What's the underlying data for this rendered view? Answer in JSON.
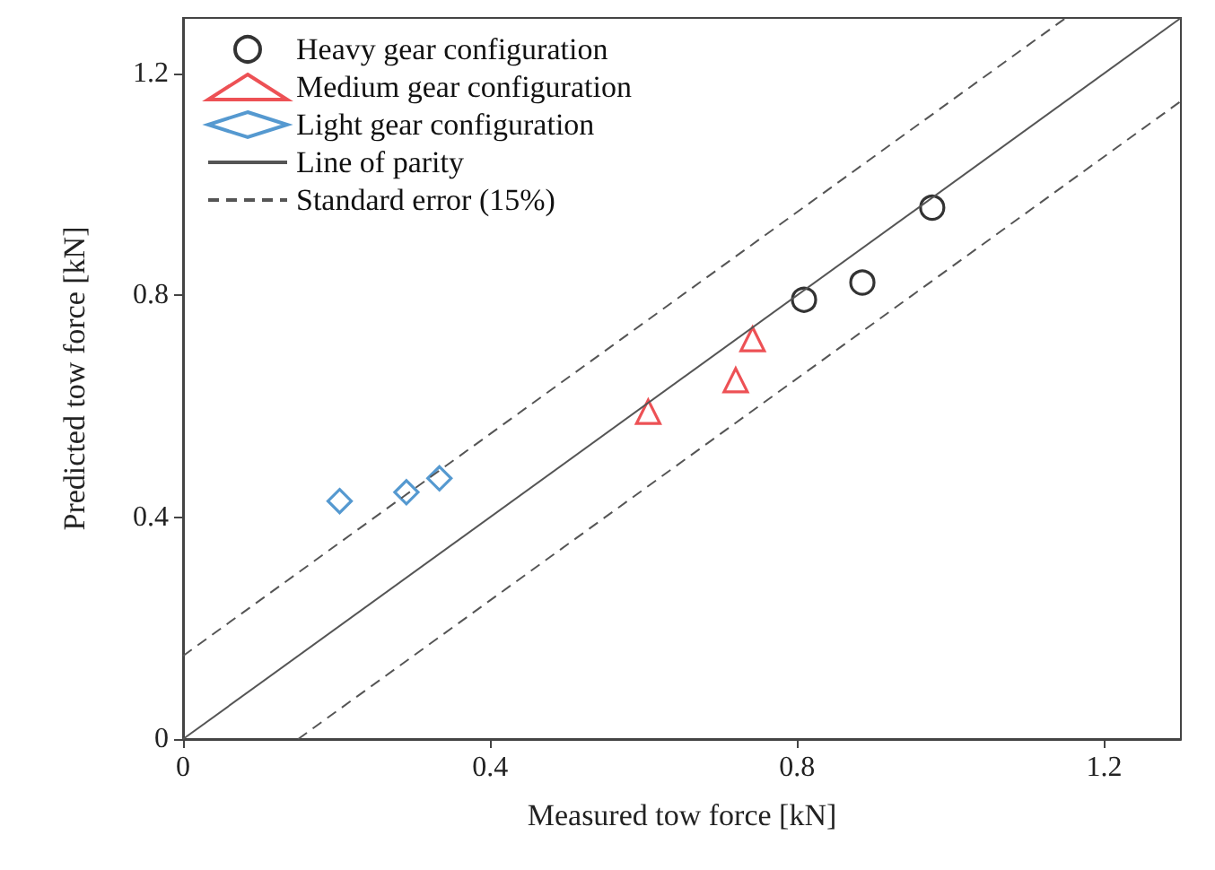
{
  "chart_data": {
    "type": "scatter",
    "xlabel": "Measured tow force [kN]",
    "ylabel": "Predicted tow force [kN]",
    "xlim": [
      0,
      1.3
    ],
    "ylim": [
      0,
      1.3
    ],
    "xticks": [
      0,
      0.4,
      0.8,
      1.2
    ],
    "yticks": [
      0,
      0.4,
      0.8,
      1.2
    ],
    "grid": false,
    "legend": "top left",
    "series": [
      {
        "name": "Heavy gear configuration",
        "color": "#000000",
        "marker": "circle",
        "x": [
          0.809,
          0.885,
          0.976
        ],
        "values": [
          0.792,
          0.823,
          0.958
        ]
      },
      {
        "name": "Medium gear configuration",
        "color": "#e8262a",
        "marker": "triangle",
        "x": [
          0.606,
          0.72,
          0.742
        ],
        "values": [
          0.59,
          0.647,
          0.721
        ]
      },
      {
        "name": "Light gear configuration",
        "color": "#2a7fc4",
        "marker": "diamond",
        "x": [
          0.204,
          0.291,
          0.334
        ],
        "values": [
          0.429,
          0.445,
          0.47
        ]
      },
      {
        "name": "Line of parity",
        "type": "line",
        "color": "#555555",
        "line_style": "solid",
        "marker": "none",
        "x": [
          0,
          1.3
        ],
        "values": [
          0,
          1.3
        ]
      },
      {
        "name": "Standard error (15%)",
        "type": "line",
        "color": "#555555",
        "line_style": "dashed",
        "marker": "none",
        "x": [
          0,
          1.15
        ],
        "values": [
          0.15,
          1.3
        ]
      },
      {
        "type": "line",
        "color": "#555555",
        "line_style": "dashed",
        "marker": "none",
        "x": [
          0.15,
          1.3
        ],
        "values": [
          0,
          1.15
        ]
      }
    ]
  }
}
